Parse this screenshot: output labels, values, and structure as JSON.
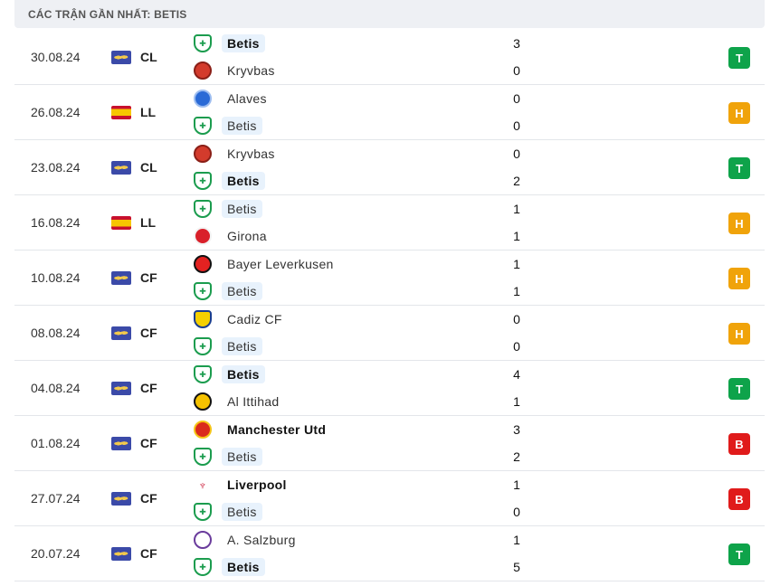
{
  "title": "CÁC TRẬN GẦN NHẤT: BETIS",
  "colors": {
    "win": "#0ea34a",
    "draw": "#f0a30a",
    "loss": "#e01b1b",
    "highlight": "#e8f2fc"
  },
  "matches": [
    {
      "date": "30.08.24",
      "flag": "world",
      "comp": "CL",
      "home": {
        "name": "Betis",
        "logo": "betis",
        "winner": true,
        "highlight": true,
        "score": "3"
      },
      "away": {
        "name": "Kryvbas",
        "logo": "kryvbas",
        "winner": false,
        "highlight": false,
        "score": "0"
      },
      "result": "T"
    },
    {
      "date": "26.08.24",
      "flag": "spain",
      "comp": "LL",
      "home": {
        "name": "Alaves",
        "logo": "alaves",
        "winner": false,
        "highlight": false,
        "score": "0"
      },
      "away": {
        "name": "Betis",
        "logo": "betis",
        "winner": false,
        "highlight": true,
        "score": "0"
      },
      "result": "H"
    },
    {
      "date": "23.08.24",
      "flag": "world",
      "comp": "CL",
      "home": {
        "name": "Kryvbas",
        "logo": "kryvbas",
        "winner": false,
        "highlight": false,
        "score": "0"
      },
      "away": {
        "name": "Betis",
        "logo": "betis",
        "winner": true,
        "highlight": true,
        "score": "2"
      },
      "result": "T"
    },
    {
      "date": "16.08.24",
      "flag": "spain",
      "comp": "LL",
      "home": {
        "name": "Betis",
        "logo": "betis",
        "winner": false,
        "highlight": true,
        "score": "1"
      },
      "away": {
        "name": "Girona",
        "logo": "girona",
        "winner": false,
        "highlight": false,
        "score": "1"
      },
      "result": "H"
    },
    {
      "date": "10.08.24",
      "flag": "world",
      "comp": "CF",
      "home": {
        "name": "Bayer Leverkusen",
        "logo": "bayer",
        "winner": false,
        "highlight": false,
        "score": "1"
      },
      "away": {
        "name": "Betis",
        "logo": "betis",
        "winner": false,
        "highlight": true,
        "score": "1"
      },
      "result": "H"
    },
    {
      "date": "08.08.24",
      "flag": "world",
      "comp": "CF",
      "home": {
        "name": "Cadiz CF",
        "logo": "cadiz",
        "winner": false,
        "highlight": false,
        "score": "0"
      },
      "away": {
        "name": "Betis",
        "logo": "betis",
        "winner": false,
        "highlight": true,
        "score": "0"
      },
      "result": "H"
    },
    {
      "date": "04.08.24",
      "flag": "world",
      "comp": "CF",
      "home": {
        "name": "Betis",
        "logo": "betis",
        "winner": true,
        "highlight": true,
        "score": "4"
      },
      "away": {
        "name": "Al Ittihad",
        "logo": "ittihad",
        "winner": false,
        "highlight": false,
        "score": "1"
      },
      "result": "T"
    },
    {
      "date": "01.08.24",
      "flag": "world",
      "comp": "CF",
      "home": {
        "name": "Manchester Utd",
        "logo": "manutd",
        "winner": true,
        "highlight": false,
        "score": "3"
      },
      "away": {
        "name": "Betis",
        "logo": "betis",
        "winner": false,
        "highlight": true,
        "score": "2"
      },
      "result": "B"
    },
    {
      "date": "27.07.24",
      "flag": "world",
      "comp": "CF",
      "home": {
        "name": "Liverpool",
        "logo": "liverpool",
        "winner": true,
        "highlight": false,
        "score": "1"
      },
      "away": {
        "name": "Betis",
        "logo": "betis",
        "winner": false,
        "highlight": true,
        "score": "0"
      },
      "result": "B"
    },
    {
      "date": "20.07.24",
      "flag": "world",
      "comp": "CF",
      "home": {
        "name": "A. Salzburg",
        "logo": "salzburg",
        "winner": false,
        "highlight": false,
        "score": "1"
      },
      "away": {
        "name": "Betis",
        "logo": "betis",
        "winner": true,
        "highlight": true,
        "score": "5"
      },
      "result": "T"
    }
  ]
}
